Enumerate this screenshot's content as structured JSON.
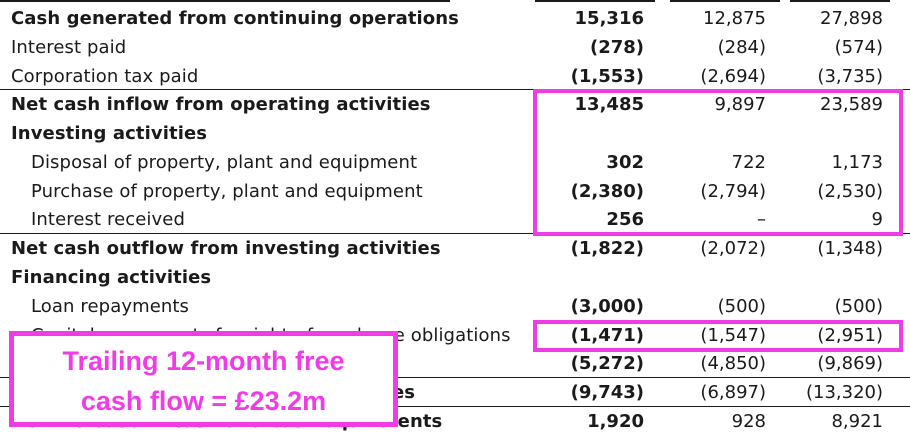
{
  "table": {
    "rows": [
      {
        "label": "Cash generated from continuing operations",
        "bold": true,
        "indent": false,
        "c1": "15,316",
        "c2": "12,875",
        "c3": "27,898"
      },
      {
        "label": "Interest paid",
        "bold": false,
        "indent": false,
        "c1": "(278)",
        "c2": "(284)",
        "c3": "(574)"
      },
      {
        "label": "Corporation tax paid",
        "bold": false,
        "indent": false,
        "c1": "(1,553)",
        "c2": "(2,694)",
        "c3": "(3,735)"
      },
      {
        "label": "Net cash inflow from operating activities",
        "bold": true,
        "indent": false,
        "c1": "13,485",
        "c2": "9,897",
        "c3": "23,589"
      },
      {
        "label": "Investing activities",
        "bold": true,
        "indent": false,
        "c1": "",
        "c2": "",
        "c3": ""
      },
      {
        "label": "Disposal of property, plant and equipment",
        "bold": false,
        "indent": true,
        "c1": "302",
        "c2": "722",
        "c3": "1,173"
      },
      {
        "label": "Purchase of property, plant and equipment",
        "bold": false,
        "indent": true,
        "c1": "(2,380)",
        "c2": "(2,794)",
        "c3": "(2,530)"
      },
      {
        "label": "Interest received",
        "bold": false,
        "indent": true,
        "c1": "256",
        "c2": "–",
        "c3": "9"
      },
      {
        "label": "Net cash outflow from investing activities",
        "bold": true,
        "indent": false,
        "c1": "(1,822)",
        "c2": "(2,072)",
        "c3": "(1,348)"
      },
      {
        "label": "Financing activities",
        "bold": true,
        "indent": false,
        "c1": "",
        "c2": "",
        "c3": ""
      },
      {
        "label": "Loan repayments",
        "bold": false,
        "indent": true,
        "c1": "(3,000)",
        "c2": "(500)",
        "c3": "(500)"
      },
      {
        "label": "Capital repayments for right-of-use lease obligations",
        "bold": false,
        "indent": true,
        "c1": "(1,471)",
        "c2": "(1,547)",
        "c3": "(2,951)"
      },
      {
        "label": "",
        "bold": false,
        "indent": false,
        "c1": "(5,272)",
        "c2": "(4,850)",
        "c3": "(9,869)"
      },
      {
        "label": "es",
        "bold": true,
        "indent": false,
        "c1": "(9,743)",
        "c2": "(6,897)",
        "c3": "(13,320)"
      },
      {
        "label": "Net increase in cash and cash equivalents",
        "bold": true,
        "indent": false,
        "c1": "1,920",
        "c2": "928",
        "c3": "8,921"
      }
    ]
  },
  "annotation": {
    "line1": "Trailing 12-month free",
    "line2": "cash flow = £23.2m",
    "color": "#f03ce6"
  }
}
